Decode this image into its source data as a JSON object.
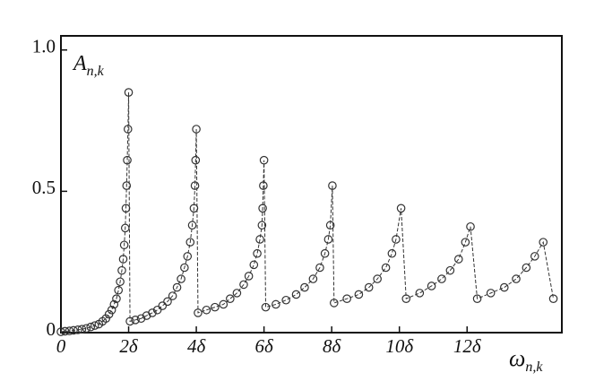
{
  "chart_data": {
    "type": "line",
    "ylabel": {
      "main": "A",
      "sub": "n,k"
    },
    "xlabel": {
      "main": "ω",
      "sub": "n,k"
    },
    "x": [
      0,
      0.12,
      0.25,
      0.37,
      0.5,
      0.62,
      0.75,
      0.88,
      1.0,
      1.12,
      1.23,
      1.33,
      1.42,
      1.5,
      1.57,
      1.64,
      1.7,
      1.75,
      1.8,
      1.84,
      1.87,
      1.9,
      1.92,
      1.94,
      1.96,
      1.98,
      2.0,
      2.04,
      2.2,
      2.37,
      2.53,
      2.7,
      2.85,
      3.0,
      3.15,
      3.3,
      3.43,
      3.55,
      3.65,
      3.74,
      3.82,
      3.88,
      3.93,
      3.96,
      3.98,
      4.0,
      4.05,
      4.3,
      4.55,
      4.8,
      5.0,
      5.2,
      5.4,
      5.55,
      5.7,
      5.8,
      5.88,
      5.94,
      5.96,
      5.98,
      6.0,
      6.05,
      6.35,
      6.65,
      6.95,
      7.2,
      7.45,
      7.65,
      7.8,
      7.9,
      7.96,
      8.02,
      8.07,
      8.45,
      8.8,
      9.1,
      9.35,
      9.6,
      9.78,
      9.9,
      10.05,
      10.2,
      10.6,
      10.95,
      11.25,
      11.5,
      11.75,
      11.95,
      12.1,
      12.3,
      12.7,
      13.1,
      13.45,
      13.75,
      14.0,
      14.25,
      14.55
    ],
    "values": [
      0.003,
      0.005,
      0.006,
      0.008,
      0.01,
      0.012,
      0.015,
      0.02,
      0.025,
      0.03,
      0.04,
      0.05,
      0.065,
      0.08,
      0.1,
      0.12,
      0.15,
      0.18,
      0.22,
      0.26,
      0.31,
      0.37,
      0.44,
      0.52,
      0.61,
      0.72,
      0.85,
      0.04,
      0.045,
      0.05,
      0.06,
      0.07,
      0.08,
      0.095,
      0.11,
      0.13,
      0.16,
      0.19,
      0.23,
      0.27,
      0.32,
      0.38,
      0.44,
      0.52,
      0.61,
      0.72,
      0.07,
      0.08,
      0.09,
      0.1,
      0.12,
      0.14,
      0.17,
      0.2,
      0.24,
      0.28,
      0.33,
      0.38,
      0.44,
      0.52,
      0.61,
      0.09,
      0.1,
      0.115,
      0.135,
      0.16,
      0.19,
      0.23,
      0.28,
      0.33,
      0.38,
      0.52,
      0.105,
      0.12,
      0.135,
      0.16,
      0.19,
      0.23,
      0.28,
      0.33,
      0.44,
      0.12,
      0.14,
      0.165,
      0.19,
      0.22,
      0.26,
      0.32,
      0.375,
      0.12,
      0.14,
      0.16,
      0.19,
      0.23,
      0.27,
      0.32,
      0.12
    ],
    "color": "#333333",
    "xlim": [
      0,
      14.8
    ],
    "ylim": [
      0,
      1.05
    ],
    "xticks": [
      0,
      {
        "value": 2,
        "label": "2δ"
      },
      {
        "value": 4,
        "label": "4δ"
      },
      {
        "value": 6,
        "label": "6δ"
      },
      {
        "value": 8,
        "label": "8δ"
      },
      {
        "value": 10,
        "label": "10δ"
      },
      {
        "value": 12,
        "label": "12δ"
      }
    ],
    "yticks": [
      0,
      0.5,
      {
        "value": 1,
        "label": "1.0"
      }
    ],
    "grid": false
  }
}
